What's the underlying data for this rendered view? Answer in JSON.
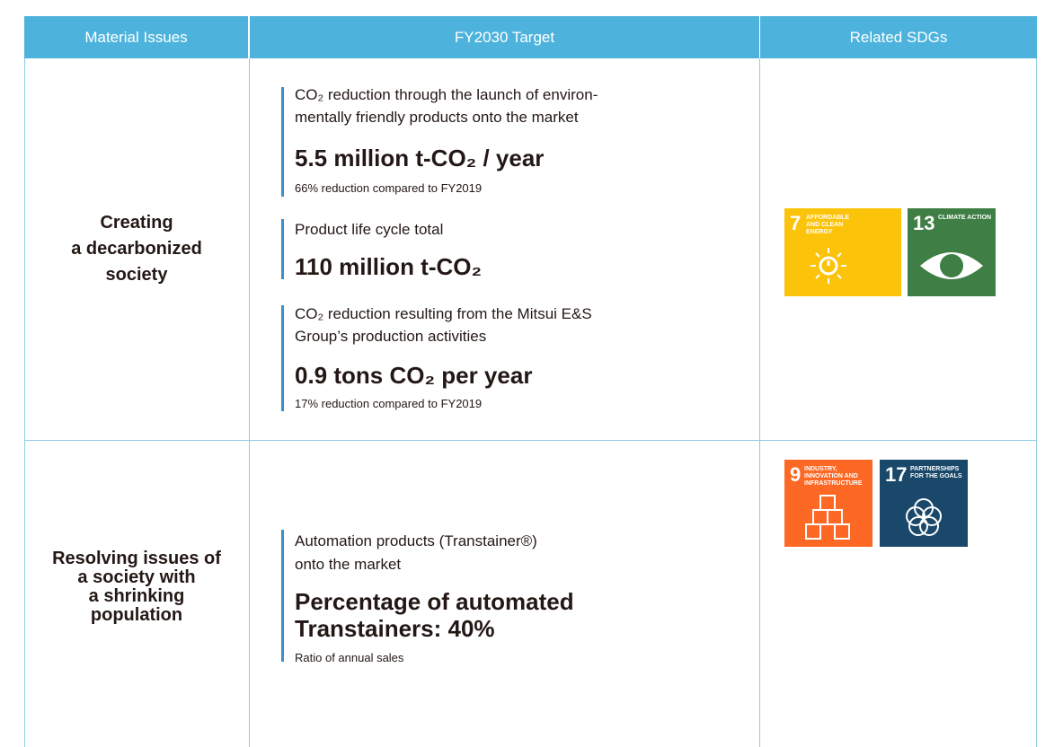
{
  "table": {
    "headers": [
      "Material Issues",
      "FY2030 Target",
      "Related SDGs"
    ],
    "rows": [
      {
        "issue": [
          "Creating",
          "a decarbonized",
          "society"
        ],
        "targets": [
          {
            "description": [
              "CO₂ reduction through the launch of environ-",
              "mentally friendly products onto the market"
            ],
            "headline": [
              "5.5 million t-CO₂ / year"
            ],
            "note": "66% reduction compared to FY2019"
          },
          {
            "description": [
              "Product life cycle total"
            ],
            "headline": [
              "110 million t-CO₂"
            ]
          },
          {
            "description": [
              "CO₂ reduction resulting from the Mitsui E&S",
              "Group’s production activities"
            ],
            "headline": [
              "0.9 tons CO₂ per year"
            ],
            "note": "17% reduction compared to FY2019"
          }
        ],
        "sdgs": [
          {
            "number": "7",
            "label": "AFFORDABLE AND CLEAN ENERGY"
          },
          {
            "number": "13",
            "label": "CLIMATE ACTION"
          }
        ]
      },
      {
        "issue": [
          "Resolving issues of",
          "a society with",
          "a shrinking",
          "population"
        ],
        "targets": [
          {
            "description": [
              "Automation products (Transtainer®)",
              "onto the market"
            ],
            "headline": [
              "Percentage of automated",
              "Transtainers: 40%"
            ],
            "note": "Ratio of annual sales"
          }
        ],
        "sdgs": [
          {
            "number": "9",
            "label": "INDUSTRY, INNOVATION AND INFRASTRUCTURE"
          },
          {
            "number": "17",
            "label": "PARTNERSHIPS FOR THE GOALS"
          }
        ]
      }
    ]
  }
}
